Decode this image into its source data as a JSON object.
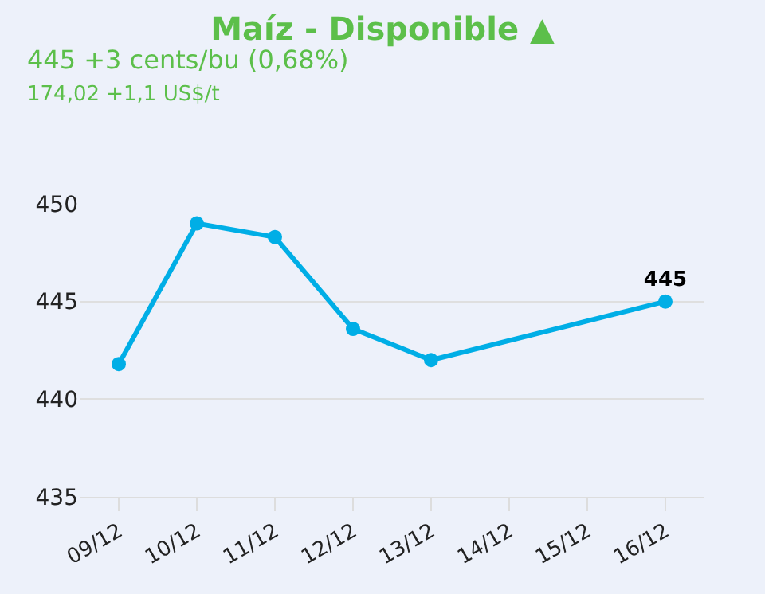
{
  "chart_data": {
    "type": "line",
    "title": "Maíz - Disponible ▲",
    "subtitle": "445 +3 cents/bu (0,68%)",
    "annotations": [
      "174,02 +1,1 US$/t"
    ],
    "categories": [
      "09/12",
      "10/12",
      "11/12",
      "12/12",
      "13/12",
      "14/12",
      "15/12",
      "16/12"
    ],
    "series": [
      {
        "color": "#00aee6",
        "values": [
          441.8,
          449.0,
          448.3,
          443.6,
          442.0,
          null,
          null,
          445
        ],
        "value_labels": [
          null,
          null,
          null,
          null,
          null,
          null,
          null,
          "445"
        ]
      }
    ],
    "ylim": [
      435,
      450
    ],
    "yticks": [
      435,
      440,
      445,
      450
    ],
    "grid": "y",
    "marker": "circle",
    "line_style": "solid"
  }
}
